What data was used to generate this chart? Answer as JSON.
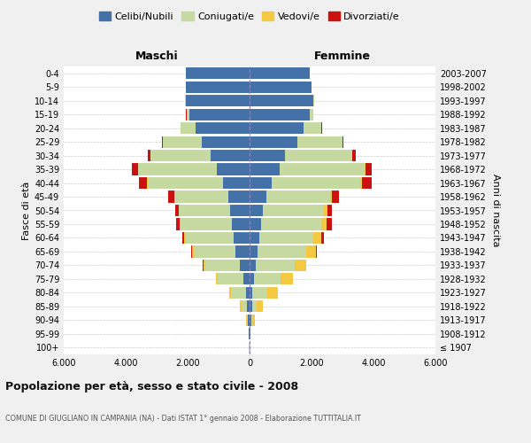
{
  "age_groups": [
    "100+",
    "95-99",
    "90-94",
    "85-89",
    "80-84",
    "75-79",
    "70-74",
    "65-69",
    "60-64",
    "55-59",
    "50-54",
    "45-49",
    "40-44",
    "35-39",
    "30-34",
    "25-29",
    "20-24",
    "15-19",
    "10-14",
    "5-9",
    "0-4"
  ],
  "birth_years": [
    "≤ 1907",
    "1908-1912",
    "1913-1917",
    "1918-1922",
    "1923-1927",
    "1928-1932",
    "1933-1937",
    "1938-1942",
    "1943-1947",
    "1948-1952",
    "1953-1957",
    "1958-1962",
    "1963-1967",
    "1968-1972",
    "1973-1977",
    "1978-1982",
    "1983-1987",
    "1988-1992",
    "1993-1997",
    "1998-2002",
    "2003-2007"
  ],
  "male": {
    "celibe": [
      10,
      20,
      50,
      80,
      120,
      200,
      320,
      450,
      520,
      580,
      630,
      680,
      850,
      1050,
      1250,
      1550,
      1750,
      1950,
      2050,
      2050,
      2050
    ],
    "coniugato": [
      5,
      10,
      50,
      180,
      480,
      820,
      1100,
      1350,
      1550,
      1650,
      1650,
      1750,
      2450,
      2550,
      1950,
      1250,
      480,
      90,
      25,
      8,
      4
    ],
    "vedovo": [
      1,
      3,
      15,
      45,
      55,
      65,
      70,
      55,
      35,
      25,
      18,
      12,
      8,
      6,
      4,
      2,
      1,
      1,
      0,
      0,
      0
    ],
    "divorziato": [
      0,
      0,
      0,
      0,
      4,
      8,
      12,
      25,
      70,
      130,
      110,
      180,
      270,
      180,
      90,
      25,
      8,
      4,
      0,
      0,
      0
    ]
  },
  "female": {
    "nubile": [
      12,
      20,
      55,
      75,
      95,
      140,
      190,
      265,
      305,
      360,
      430,
      530,
      720,
      960,
      1150,
      1550,
      1750,
      1950,
      2050,
      2000,
      1950
    ],
    "coniugata": [
      4,
      8,
      40,
      160,
      480,
      870,
      1270,
      1570,
      1760,
      1960,
      1960,
      2060,
      2860,
      2750,
      2150,
      1450,
      570,
      110,
      25,
      8,
      4
    ],
    "vedova": [
      2,
      12,
      70,
      180,
      330,
      380,
      360,
      300,
      235,
      165,
      110,
      72,
      44,
      26,
      13,
      4,
      2,
      1,
      0,
      0,
      0
    ],
    "divorziata": [
      0,
      0,
      0,
      0,
      4,
      8,
      18,
      35,
      90,
      160,
      145,
      230,
      320,
      210,
      110,
      35,
      12,
      4,
      0,
      0,
      0
    ]
  },
  "colors": {
    "celibe": "#4472a8",
    "coniugato": "#c5d9a0",
    "vedovo": "#f5c842",
    "divorziato": "#cc1111"
  },
  "xlim": 6000,
  "title": "Popolazione per età, sesso e stato civile - 2008",
  "subtitle": "COMUNE DI GIUGLIANO IN CAMPANIA (NA) - Dati ISTAT 1° gennaio 2008 - Elaborazione TUTTITALIA.IT",
  "ylabel_left": "Fasce di età",
  "ylabel_right": "Anni di nascita",
  "xlabel_left": "Maschi",
  "xlabel_right": "Femmine",
  "bg_color": "#f0f0f0",
  "plot_bg": "#ffffff"
}
